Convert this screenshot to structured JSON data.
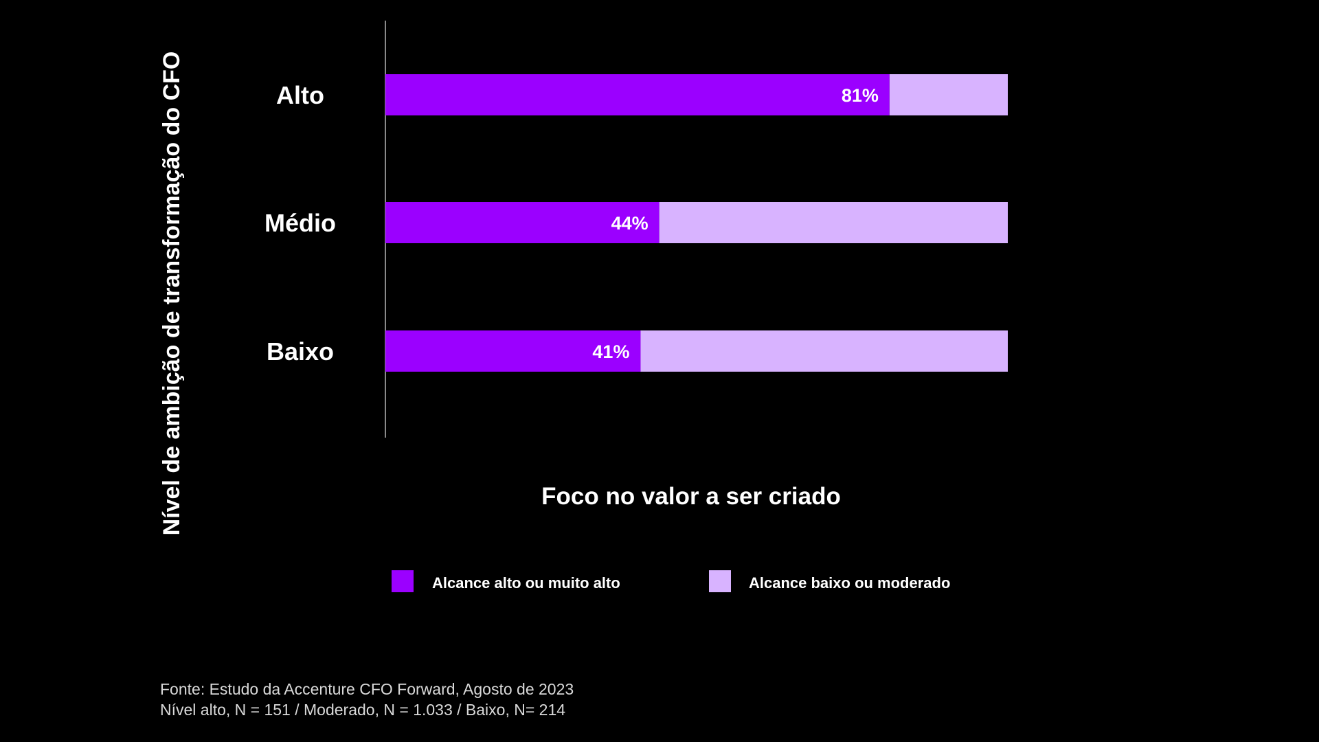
{
  "chart_data": {
    "type": "bar",
    "orientation": "horizontal",
    "stacked": true,
    "categories": [
      "Alto",
      "Médio",
      "Baixo"
    ],
    "series": [
      {
        "name": "Alcance alto ou muito alto",
        "values": [
          81,
          44,
          41
        ],
        "color": "#9b00ff",
        "value_labels": [
          "81%",
          "44%",
          "41%"
        ]
      },
      {
        "name": "Alcance baixo ou moderado",
        "values": [
          19,
          56,
          59
        ],
        "color": "#d8b3ff"
      }
    ],
    "xlim": [
      0,
      100
    ],
    "xlabel": "Foco no valor a ser criado",
    "ylabel": "Nível de ambição de transformação do CFO",
    "legend": "bottom",
    "grid": false
  },
  "source": {
    "line1": "Fonte: Estudo da Accenture CFO Forward, Agosto de 2023",
    "line2": "Nível alto, N = 151 / Moderado, N = 1.033 / Baixo, N= 214"
  }
}
